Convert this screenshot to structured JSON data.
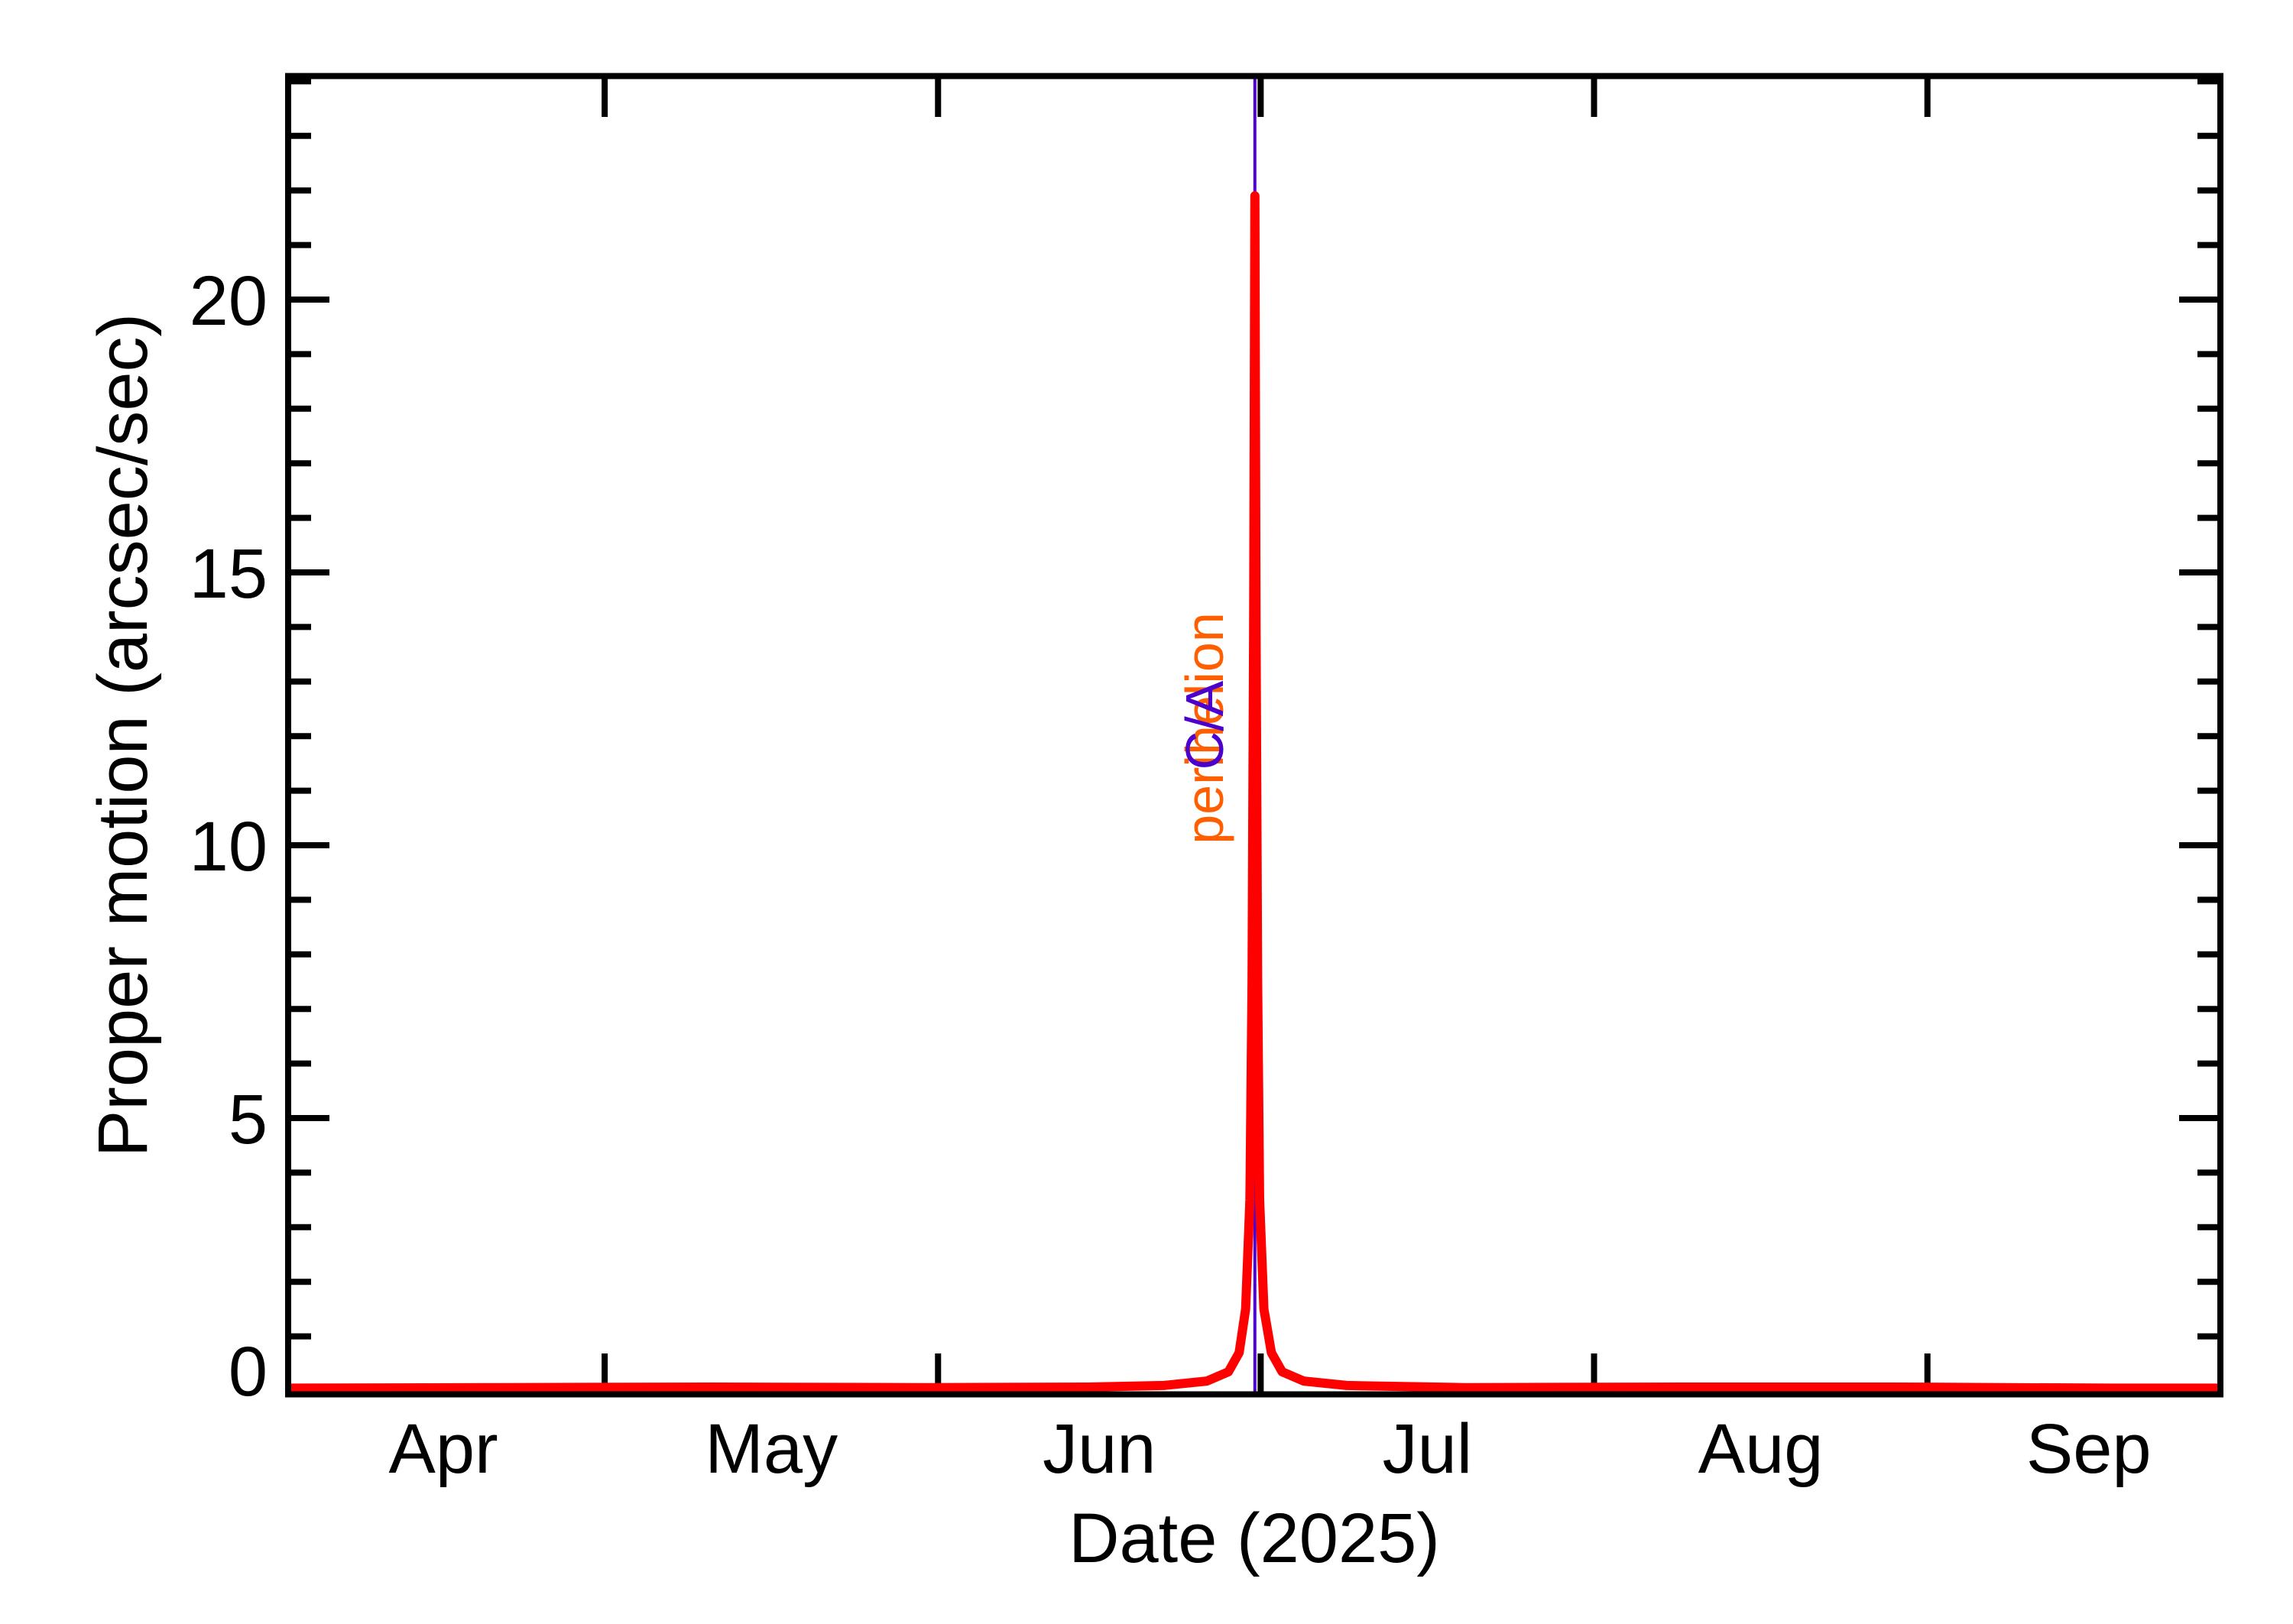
{
  "chart_data": {
    "type": "line",
    "title": "",
    "xlabel": "Date (2025)",
    "ylabel": "Proper motion (arcsec/sec)",
    "x_unit": "days since 2025-04-01",
    "xlim_days": [
      0.6,
      180.3
    ],
    "ylim": [
      -0.07,
      24.1
    ],
    "grid": false,
    "legend": null,
    "x_ticks": [
      {
        "label": "Apr",
        "tick_day": 0,
        "label_day": 15
      },
      {
        "label": "May",
        "tick_day": 30,
        "label_day": 45.5
      },
      {
        "label": "Jun",
        "tick_day": 61,
        "label_day": 76
      },
      {
        "label": "Jul",
        "tick_day": 91,
        "label_day": 106.5
      },
      {
        "label": "Aug",
        "tick_day": 122,
        "label_day": 137.5
      },
      {
        "label": "Sep",
        "tick_day": 153,
        "label_day": 168
      }
    ],
    "y_ticks": [
      {
        "label": "0",
        "value": 0
      },
      {
        "label": "5",
        "value": 5
      },
      {
        "label": "10",
        "value": 10
      },
      {
        "label": "15",
        "value": 15
      },
      {
        "label": "20",
        "value": 20
      }
    ],
    "y_minor_step": 1,
    "series": [
      {
        "name": "proper motion",
        "color": "#ff0000",
        "x": [
          0.6,
          20,
          40,
          60,
          75,
          82,
          86,
          88,
          89,
          89.6,
          90.0,
          90.2,
          90.35,
          90.46,
          90.57,
          90.72,
          90.9,
          91.3,
          92,
          93,
          95,
          99,
          110,
          130,
          150,
          170,
          180.3
        ],
        "y": [
          0.05,
          0.06,
          0.07,
          0.06,
          0.07,
          0.1,
          0.18,
          0.35,
          0.7,
          1.5,
          3.5,
          7.5,
          14.0,
          21.9,
          14.0,
          7.5,
          3.5,
          1.5,
          0.7,
          0.35,
          0.18,
          0.1,
          0.06,
          0.07,
          0.07,
          0.05,
          0.05
        ]
      }
    ],
    "annotations": [
      {
        "text": "perihelion",
        "day": 90.46,
        "color": "#ff5f00",
        "orientation": "vertical"
      },
      {
        "text": "C/A",
        "day": 90.46,
        "color": "#4b00cc",
        "orientation": "vertical"
      }
    ],
    "vertical_lines": [
      {
        "name": "close-approach",
        "day": 90.46,
        "color": "#4b00cc"
      }
    ]
  },
  "axes": {
    "x_title": "Date (2025)",
    "y_title": "Proper motion (arcsec/sec)"
  },
  "colors": {
    "axis": "#000000",
    "curve": "#ff0000",
    "perihelion": "#ff5f00",
    "close_approach": "#4b00cc"
  }
}
